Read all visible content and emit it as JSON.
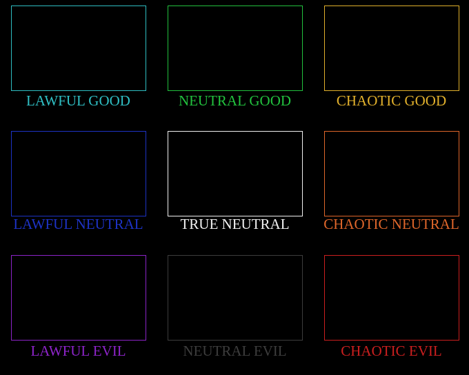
{
  "cells": [
    {
      "label": "LAWFUL GOOD",
      "color": "#2fbfc4"
    },
    {
      "label": "NEUTRAL GOOD",
      "color": "#22c23e"
    },
    {
      "label": "CHAOTIC GOOD",
      "color": "#e2b12c"
    },
    {
      "label": "LAWFUL NEUTRAL",
      "color": "#1d33c6"
    },
    {
      "label": "TRUE NEUTRAL",
      "color": "#f2f2f2"
    },
    {
      "label": "CHAOTIC NEUTRAL",
      "color": "#e0672b"
    },
    {
      "label": "LAWFUL EVIL",
      "color": "#8d24c9"
    },
    {
      "label": "NEUTRAL EVIL",
      "color": "#3d3d3d"
    },
    {
      "label": "CHAOTIC EVIL",
      "color": "#cc1f1f"
    }
  ]
}
